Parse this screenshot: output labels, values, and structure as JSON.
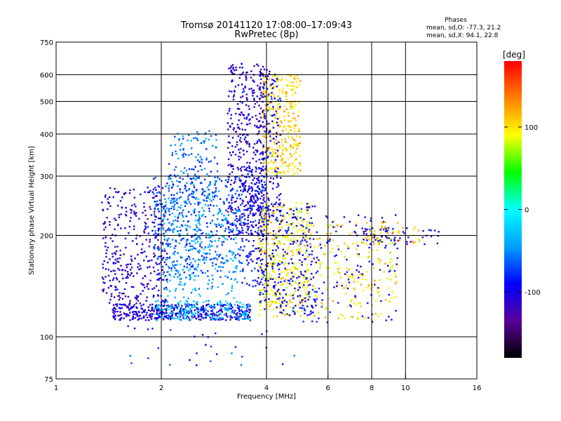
{
  "chart_data": {
    "type": "scatter",
    "title": "Tromsø 20141120 17:08:00–17:09:43",
    "subtitle": "RwPretec (8p)",
    "xlabel": "Frequency [MHz]",
    "ylabel": "Stationary phase Virtual Height [km]",
    "x_scale": "log",
    "y_scale": "log",
    "xlim": [
      1,
      16
    ],
    "ylim": [
      75,
      750
    ],
    "x_ticks": [
      1,
      2,
      4,
      6,
      8,
      10,
      16
    ],
    "x_tick_labels": [
      "1",
      "2",
      "4",
      "6",
      "8",
      "10",
      "16"
    ],
    "x_grid": [
      2,
      4,
      6,
      8,
      10
    ],
    "y_ticks": [
      75,
      100,
      200,
      300,
      400,
      500,
      600,
      750
    ],
    "y_tick_labels": [
      "75",
      "100",
      "200",
      "300",
      "400",
      "500",
      "600",
      "750"
    ],
    "y_grid": [
      100,
      200,
      300,
      400,
      500,
      600
    ],
    "grid": true,
    "phase_box": {
      "title": "Phases",
      "line_o": "mean, sd,O: -77.3, 21.2",
      "line_x": "mean, sd,X:  94.1, 22.8"
    },
    "colorbar": {
      "label": "[deg]",
      "range": [
        -180,
        180
      ],
      "ticks": [
        100,
        0,
        -100
      ],
      "tick_labels": [
        "100",
        "0",
        "-100"
      ],
      "colors": [
        "#000000",
        "#5a009a",
        "#0000ff",
        "#00a0ff",
        "#00ffff",
        "#00ff00",
        "#ffff00",
        "#ff8000",
        "#ff0000"
      ]
    },
    "clusters": [
      {
        "f0": 1.45,
        "f1": 3.6,
        "h0": 112,
        "h1": 125,
        "phase": -105,
        "n": 420
      },
      {
        "f0": 1.9,
        "f1": 3.6,
        "h0": 112,
        "h1": 128,
        "phase": -30,
        "n": 180
      },
      {
        "f0": 1.35,
        "f1": 2.1,
        "h0": 125,
        "h1": 280,
        "phase": -110,
        "n": 360
      },
      {
        "f0": 1.9,
        "f1": 3.4,
        "h0": 150,
        "h1": 300,
        "phase": -70,
        "n": 420
      },
      {
        "f0": 2.0,
        "f1": 3.3,
        "h0": 130,
        "h1": 260,
        "phase": -40,
        "n": 260
      },
      {
        "f0": 2.1,
        "f1": 2.9,
        "h0": 250,
        "h1": 410,
        "phase": -60,
        "n": 150
      },
      {
        "f0": 3.1,
        "f1": 3.95,
        "h0": 200,
        "h1": 650,
        "phase": -110,
        "n": 420
      },
      {
        "f0": 3.4,
        "f1": 3.95,
        "h0": 140,
        "h1": 320,
        "phase": -90,
        "n": 160
      },
      {
        "f0": 3.9,
        "f1": 5.0,
        "h0": 300,
        "h1": 600,
        "phase": 105,
        "n": 320
      },
      {
        "f0": 3.8,
        "f1": 4.4,
        "h0": 220,
        "h1": 620,
        "phase": -100,
        "n": 160
      },
      {
        "f0": 3.8,
        "f1": 5.3,
        "h0": 115,
        "h1": 250,
        "phase": 95,
        "n": 380
      },
      {
        "f0": 3.8,
        "f1": 5.6,
        "h0": 115,
        "h1": 250,
        "phase": -95,
        "n": 260
      },
      {
        "f0": 5.2,
        "f1": 9.5,
        "h0": 112,
        "h1": 220,
        "phase": 100,
        "n": 200
      },
      {
        "f0": 5.0,
        "f1": 9.5,
        "h0": 110,
        "h1": 230,
        "phase": -95,
        "n": 130
      },
      {
        "f0": 7.5,
        "f1": 12.5,
        "h0": 188,
        "h1": 212,
        "phase": -100,
        "n": 55
      },
      {
        "f0": 7.5,
        "f1": 11.0,
        "h0": 188,
        "h1": 212,
        "phase": 110,
        "n": 35
      },
      {
        "f0": 1.6,
        "f1": 5.0,
        "h0": 82,
        "h1": 108,
        "phase": -85,
        "n": 30
      }
    ]
  }
}
